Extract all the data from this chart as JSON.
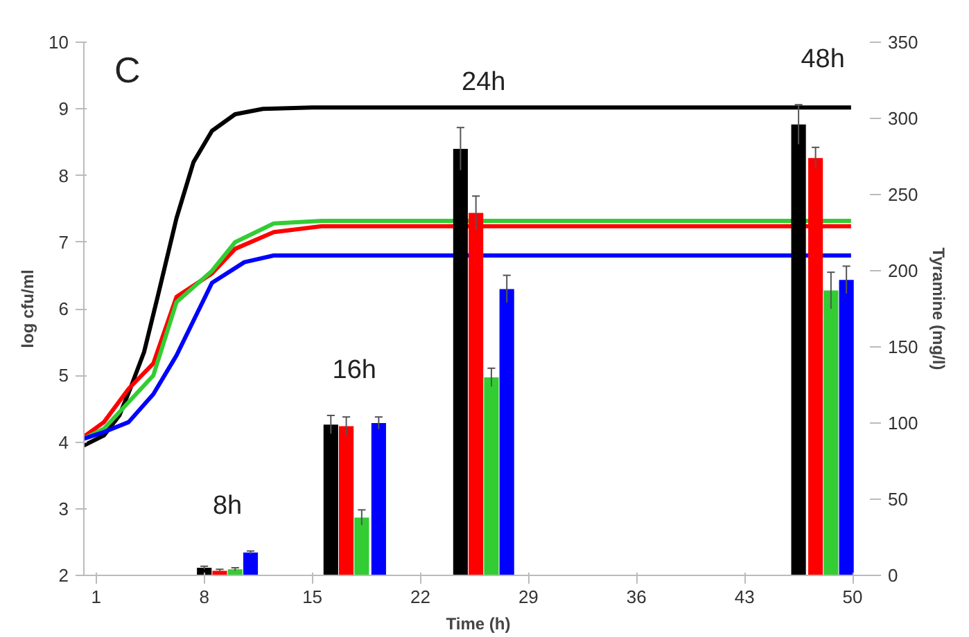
{
  "chart_data": {
    "type": "line",
    "xlabel": "Time (h)",
    "ylabel": "log cfu/ml",
    "y2label": "Tyramine (mg/l)",
    "xlim": [
      0.2,
      51.3
    ],
    "xticks": [
      1,
      8,
      15,
      22,
      29,
      36,
      43,
      50
    ],
    "ylim": [
      2,
      10
    ],
    "yticks": [
      2,
      3,
      4,
      5,
      6,
      7,
      8,
      9,
      10
    ],
    "y2lim": [
      0,
      350
    ],
    "y2ticks": [
      0,
      50,
      100,
      150,
      200,
      250,
      300,
      350
    ],
    "grid": false,
    "annotations": [
      "C",
      "8h",
      "16h",
      "24h",
      "48h"
    ],
    "series": [
      {
        "color": "#000000",
        "x": [
          0.2,
          1.5,
          2.5,
          3.2,
          4.1,
          5,
          6.2,
          7.3,
          8.5,
          10,
          11.8,
          15,
          49.9
        ],
        "values": [
          3.95,
          4.1,
          4.4,
          4.8,
          5.35,
          6.2,
          7.36,
          8.2,
          8.67,
          8.92,
          9.0,
          9.02,
          9.02
        ]
      },
      {
        "color": "#ff0000",
        "x": [
          0.2,
          1.5,
          3.1,
          4.7,
          6.2,
          8.5,
          10,
          12.5,
          15.6,
          49.9
        ],
        "values": [
          4.08,
          4.3,
          4.8,
          5.18,
          6.18,
          6.53,
          6.9,
          7.15,
          7.24,
          7.24
        ]
      },
      {
        "color": "#33cc33",
        "x": [
          0.2,
          1.5,
          3.1,
          4.7,
          6.2,
          8.5,
          10,
          12.5,
          15.6,
          49.9
        ],
        "values": [
          4.05,
          4.2,
          4.6,
          5.0,
          6.1,
          6.57,
          7.0,
          7.28,
          7.32,
          7.32
        ]
      },
      {
        "color": "#0000ff",
        "x": [
          0.2,
          1.5,
          3.1,
          4.7,
          6.2,
          8.5,
          10.6,
          12.5,
          49.9
        ],
        "values": [
          4.05,
          4.15,
          4.3,
          4.72,
          5.3,
          6.39,
          6.7,
          6.8,
          6.8
        ]
      },
      {
        "type": "bar",
        "axis": "y2",
        "color": "#000000",
        "x": [
          8,
          16.2,
          24.6,
          46.5
        ],
        "values": [
          5,
          99,
          280,
          296
        ],
        "errors": [
          1,
          6,
          14,
          13
        ]
      },
      {
        "type": "bar",
        "axis": "y2",
        "color": "#ff0000",
        "x": [
          9,
          17.2,
          25.6,
          47.6
        ],
        "values": [
          3,
          98,
          238,
          274
        ],
        "errors": [
          1,
          6,
          11,
          7
        ]
      },
      {
        "type": "bar",
        "axis": "y2",
        "color": "#33cc33",
        "x": [
          10,
          18.2,
          26.6,
          48.6
        ],
        "values": [
          4,
          38,
          130,
          187
        ],
        "errors": [
          1,
          5,
          6,
          12
        ]
      },
      {
        "type": "bar",
        "axis": "y2",
        "color": "#0000ff",
        "x": [
          11,
          19.3,
          27.6,
          49.6
        ],
        "values": [
          15,
          100,
          188,
          194
        ],
        "errors": [
          1,
          4,
          9,
          9
        ]
      }
    ]
  }
}
